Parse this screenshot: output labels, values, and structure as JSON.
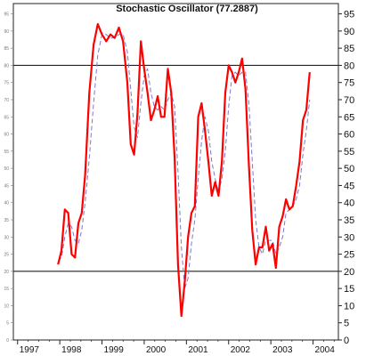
{
  "chart_data": {
    "type": "line",
    "title": "Stochastic Oscillator (77.2887)",
    "xlabel": "",
    "ylabel": "",
    "ylim": [
      0,
      98
    ],
    "xlim": [
      1996.9,
      2004.6
    ],
    "y_ticks": [
      0,
      5,
      10,
      15,
      20,
      25,
      30,
      35,
      40,
      45,
      50,
      55,
      60,
      65,
      70,
      75,
      80,
      85,
      90,
      95
    ],
    "x_ticks": [
      "1997",
      "1998",
      "1999",
      "2000",
      "2001",
      "2002",
      "2003",
      "2004"
    ],
    "reference_lines": [
      20,
      80
    ],
    "grid": false,
    "series": [
      {
        "color": "#ff0000",
        "style": "solid",
        "points": [
          [
            1997.96,
            22
          ],
          [
            1998.04,
            26
          ],
          [
            1998.12,
            38
          ],
          [
            1998.2,
            37
          ],
          [
            1998.28,
            25
          ],
          [
            1998.36,
            24
          ],
          [
            1998.44,
            34
          ],
          [
            1998.52,
            37
          ],
          [
            1998.6,
            48
          ],
          [
            1998.7,
            72
          ],
          [
            1998.8,
            86
          ],
          [
            1998.9,
            92
          ],
          [
            1999.0,
            89
          ],
          [
            1999.1,
            87
          ],
          [
            1999.2,
            89
          ],
          [
            1999.3,
            88
          ],
          [
            1999.4,
            91
          ],
          [
            1999.5,
            87
          ],
          [
            1999.6,
            75
          ],
          [
            1999.68,
            57
          ],
          [
            1999.76,
            54
          ],
          [
            1999.84,
            66
          ],
          [
            1999.92,
            87
          ],
          [
            2000.0,
            79
          ],
          [
            2000.08,
            72
          ],
          [
            2000.16,
            64
          ],
          [
            2000.24,
            67
          ],
          [
            2000.32,
            71
          ],
          [
            2000.4,
            65
          ],
          [
            2000.48,
            65
          ],
          [
            2000.56,
            79
          ],
          [
            2000.64,
            72
          ],
          [
            2000.72,
            53
          ],
          [
            2000.8,
            22
          ],
          [
            2000.88,
            7
          ],
          [
            2000.96,
            17
          ],
          [
            2001.04,
            30
          ],
          [
            2001.12,
            37
          ],
          [
            2001.2,
            39
          ],
          [
            2001.28,
            65
          ],
          [
            2001.36,
            69
          ],
          [
            2001.44,
            61
          ],
          [
            2001.52,
            52
          ],
          [
            2001.6,
            42
          ],
          [
            2001.68,
            46
          ],
          [
            2001.76,
            42
          ],
          [
            2001.84,
            52
          ],
          [
            2001.92,
            72
          ],
          [
            2002.0,
            80
          ],
          [
            2002.08,
            78
          ],
          [
            2002.16,
            75
          ],
          [
            2002.24,
            78
          ],
          [
            2002.32,
            82
          ],
          [
            2002.4,
            73
          ],
          [
            2002.48,
            51
          ],
          [
            2002.56,
            32
          ],
          [
            2002.64,
            22
          ],
          [
            2002.72,
            27
          ],
          [
            2002.8,
            27
          ],
          [
            2002.88,
            33
          ],
          [
            2002.96,
            26
          ],
          [
            2003.04,
            28
          ],
          [
            2003.12,
            21
          ],
          [
            2003.2,
            33
          ],
          [
            2003.28,
            36
          ],
          [
            2003.36,
            41
          ],
          [
            2003.44,
            38
          ],
          [
            2003.52,
            39
          ],
          [
            2003.6,
            45
          ],
          [
            2003.68,
            52
          ],
          [
            2003.76,
            64
          ],
          [
            2003.84,
            67
          ],
          [
            2003.92,
            78
          ]
        ]
      },
      {
        "color": "#7a7ad0",
        "style": "dashed",
        "points": [
          [
            1997.96,
            23
          ],
          [
            1998.04,
            24
          ],
          [
            1998.12,
            30
          ],
          [
            1998.2,
            34
          ],
          [
            1998.28,
            33
          ],
          [
            1998.36,
            29
          ],
          [
            1998.44,
            28
          ],
          [
            1998.52,
            32
          ],
          [
            1998.6,
            40
          ],
          [
            1998.7,
            53
          ],
          [
            1998.8,
            69
          ],
          [
            1998.9,
            83
          ],
          [
            1999.0,
            89
          ],
          [
            1999.1,
            89
          ],
          [
            1999.2,
            88
          ],
          [
            1999.3,
            88
          ],
          [
            1999.4,
            89
          ],
          [
            1999.5,
            89
          ],
          [
            1999.6,
            84
          ],
          [
            1999.68,
            73
          ],
          [
            1999.76,
            62
          ],
          [
            1999.84,
            59
          ],
          [
            1999.92,
            69
          ],
          [
            2000.0,
            77
          ],
          [
            2000.08,
            79
          ],
          [
            2000.16,
            72
          ],
          [
            2000.24,
            68
          ],
          [
            2000.32,
            67
          ],
          [
            2000.4,
            68
          ],
          [
            2000.48,
            67
          ],
          [
            2000.56,
            70
          ],
          [
            2000.64,
            72
          ],
          [
            2000.72,
            68
          ],
          [
            2000.8,
            49
          ],
          [
            2000.88,
            27
          ],
          [
            2000.96,
            15
          ],
          [
            2001.04,
            18
          ],
          [
            2001.12,
            28
          ],
          [
            2001.2,
            35
          ],
          [
            2001.28,
            47
          ],
          [
            2001.36,
            58
          ],
          [
            2001.44,
            65
          ],
          [
            2001.52,
            61
          ],
          [
            2001.6,
            52
          ],
          [
            2001.68,
            47
          ],
          [
            2001.76,
            43
          ],
          [
            2001.84,
            47
          ],
          [
            2001.92,
            55
          ],
          [
            2002.0,
            68
          ],
          [
            2002.08,
            77
          ],
          [
            2002.16,
            78
          ],
          [
            2002.24,
            77
          ],
          [
            2002.32,
            78
          ],
          [
            2002.4,
            78
          ],
          [
            2002.48,
            69
          ],
          [
            2002.56,
            52
          ],
          [
            2002.64,
            35
          ],
          [
            2002.72,
            27
          ],
          [
            2002.8,
            25
          ],
          [
            2002.88,
            29
          ],
          [
            2002.96,
            29
          ],
          [
            2003.04,
            29
          ],
          [
            2003.12,
            25
          ],
          [
            2003.2,
            27
          ],
          [
            2003.28,
            30
          ],
          [
            2003.36,
            37
          ],
          [
            2003.44,
            38
          ],
          [
            2003.52,
            39
          ],
          [
            2003.6,
            41
          ],
          [
            2003.68,
            45
          ],
          [
            2003.76,
            54
          ],
          [
            2003.84,
            61
          ],
          [
            2003.92,
            70
          ]
        ]
      }
    ]
  }
}
